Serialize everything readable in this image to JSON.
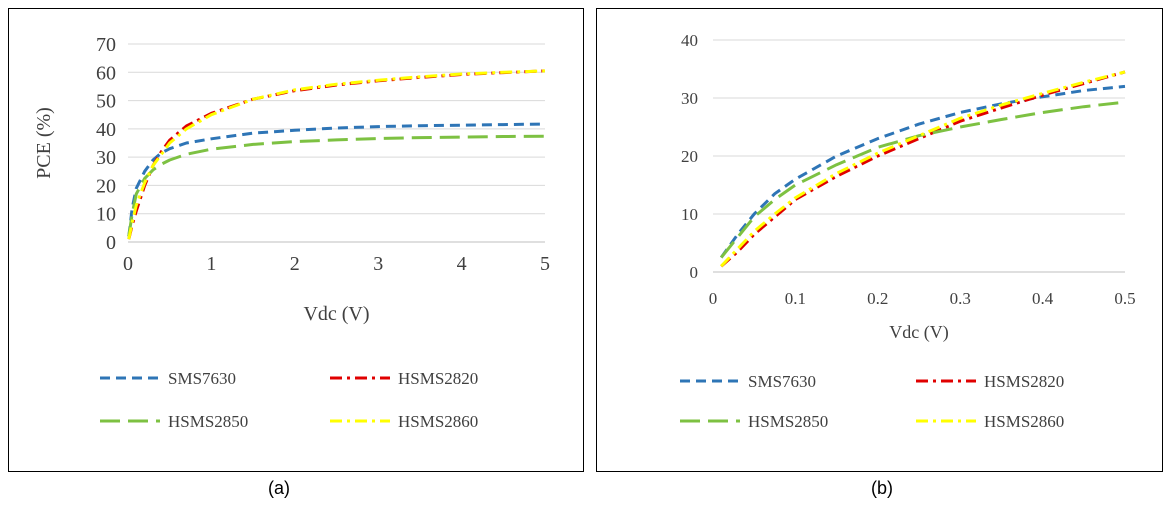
{
  "captions": [
    "(a)",
    "(b)"
  ],
  "chart_data": [
    {
      "type": "line",
      "title": "",
      "xlabel": "Vdc (V)",
      "ylabel": "PCE (%)",
      "xlim": [
        0,
        5
      ],
      "ylim": [
        0,
        70
      ],
      "x_ticks": [
        "0",
        "1",
        "2",
        "3",
        "4",
        "5"
      ],
      "y_ticks": [
        "0",
        "10",
        "20",
        "30",
        "40",
        "50",
        "60",
        "70"
      ],
      "grid": "horizontal",
      "legend_position": "bottom",
      "series": [
        {
          "name": "SMS7630",
          "color": "#2E75B6",
          "dash": "dashed",
          "points": [
            [
              0.01,
              2
            ],
            [
              0.05,
              12
            ],
            [
              0.1,
              19
            ],
            [
              0.2,
              25
            ],
            [
              0.3,
              29
            ],
            [
              0.4,
              31.5
            ],
            [
              0.5,
              33
            ],
            [
              0.7,
              35
            ],
            [
              1,
              36.5
            ],
            [
              1.5,
              38.5
            ],
            [
              2,
              39.5
            ],
            [
              2.5,
              40.3
            ],
            [
              3,
              40.8
            ],
            [
              3.5,
              41.1
            ],
            [
              4,
              41.3
            ],
            [
              4.5,
              41.5
            ],
            [
              5,
              41.7
            ]
          ]
        },
        {
          "name": "HSMS2820",
          "color": "#E00000",
          "dash": "dashdot",
          "points": [
            [
              0.01,
              1
            ],
            [
              0.05,
              6
            ],
            [
              0.1,
              11
            ],
            [
              0.2,
              20
            ],
            [
              0.3,
              27
            ],
            [
              0.4,
              32
            ],
            [
              0.5,
              36
            ],
            [
              0.7,
              41
            ],
            [
              1,
              45.5
            ],
            [
              1.5,
              50.5
            ],
            [
              2,
              53.5
            ],
            [
              2.5,
              55.5
            ],
            [
              3,
              57
            ],
            [
              3.5,
              58.2
            ],
            [
              4,
              59.2
            ],
            [
              4.5,
              59.9
            ],
            [
              5,
              60.5
            ]
          ]
        },
        {
          "name": "HSMS2850",
          "color": "#7DC142",
          "dash": "longdash",
          "points": [
            [
              0.01,
              2
            ],
            [
              0.05,
              10
            ],
            [
              0.1,
              17
            ],
            [
              0.2,
              22.5
            ],
            [
              0.3,
              25.5
            ],
            [
              0.4,
              27.5
            ],
            [
              0.5,
              29
            ],
            [
              0.7,
              31
            ],
            [
              1,
              32.8
            ],
            [
              1.5,
              34.5
            ],
            [
              2,
              35.5
            ],
            [
              2.5,
              36.1
            ],
            [
              3,
              36.6
            ],
            [
              3.5,
              36.9
            ],
            [
              4,
              37.1
            ],
            [
              4.5,
              37.3
            ],
            [
              5,
              37.4
            ]
          ]
        },
        {
          "name": "HSMS2860",
          "color": "#FFFF00",
          "dash": "dashdot",
          "points": [
            [
              0.01,
              1
            ],
            [
              0.05,
              7
            ],
            [
              0.1,
              13
            ],
            [
              0.2,
              21
            ],
            [
              0.3,
              27
            ],
            [
              0.4,
              31
            ],
            [
              0.5,
              35
            ],
            [
              0.7,
              40
            ],
            [
              1,
              45
            ],
            [
              1.5,
              50.5
            ],
            [
              2,
              53.8
            ],
            [
              2.5,
              55.8
            ],
            [
              3,
              57.2
            ],
            [
              3.5,
              58.4
            ],
            [
              4,
              59.4
            ],
            [
              4.5,
              60
            ],
            [
              5,
              60.5
            ]
          ]
        }
      ]
    },
    {
      "type": "line",
      "title": "",
      "xlabel": "Vdc (V)",
      "ylabel": "",
      "xlim": [
        0,
        0.5
      ],
      "ylim": [
        0,
        40
      ],
      "x_ticks": [
        "0",
        "0.1",
        "0.2",
        "0.3",
        "0.4",
        "0.5"
      ],
      "y_ticks": [
        "0",
        "10",
        "20",
        "30",
        "40"
      ],
      "grid": "horizontal",
      "legend_position": "bottom",
      "series": [
        {
          "name": "SMS7630",
          "color": "#2E75B6",
          "dash": "dashed",
          "points": [
            [
              0.01,
              2.5
            ],
            [
              0.03,
              6.5
            ],
            [
              0.05,
              10
            ],
            [
              0.075,
              13.5
            ],
            [
              0.1,
              16
            ],
            [
              0.15,
              20
            ],
            [
              0.2,
              23
            ],
            [
              0.25,
              25.5
            ],
            [
              0.3,
              27.5
            ],
            [
              0.35,
              29
            ],
            [
              0.4,
              30.2
            ],
            [
              0.45,
              31.3
            ],
            [
              0.5,
              32
            ]
          ]
        },
        {
          "name": "HSMS2820",
          "color": "#E00000",
          "dash": "dashdot",
          "points": [
            [
              0.01,
              1
            ],
            [
              0.03,
              3.5
            ],
            [
              0.05,
              6.5
            ],
            [
              0.075,
              9.5
            ],
            [
              0.1,
              12.5
            ],
            [
              0.15,
              16.5
            ],
            [
              0.2,
              20
            ],
            [
              0.25,
              23
            ],
            [
              0.3,
              26
            ],
            [
              0.35,
              28.3
            ],
            [
              0.4,
              30.5
            ],
            [
              0.45,
              32.5
            ],
            [
              0.5,
              34.5
            ]
          ]
        },
        {
          "name": "HSMS2850",
          "color": "#7DC142",
          "dash": "longdash",
          "points": [
            [
              0.01,
              2.5
            ],
            [
              0.03,
              6
            ],
            [
              0.05,
              9.5
            ],
            [
              0.075,
              12.5
            ],
            [
              0.1,
              15
            ],
            [
              0.15,
              18.5
            ],
            [
              0.2,
              21.5
            ],
            [
              0.25,
              23.5
            ],
            [
              0.3,
              25
            ],
            [
              0.35,
              26.3
            ],
            [
              0.4,
              27.5
            ],
            [
              0.45,
              28.5
            ],
            [
              0.5,
              29.3
            ]
          ]
        },
        {
          "name": "HSMS2860",
          "color": "#FFFF00",
          "dash": "dashdot",
          "points": [
            [
              0.01,
              1
            ],
            [
              0.03,
              4
            ],
            [
              0.05,
              7
            ],
            [
              0.075,
              10
            ],
            [
              0.1,
              12.8
            ],
            [
              0.15,
              17
            ],
            [
              0.2,
              20.5
            ],
            [
              0.25,
              23.5
            ],
            [
              0.3,
              26.5
            ],
            [
              0.35,
              28.8
            ],
            [
              0.4,
              30.8
            ],
            [
              0.45,
              32.7
            ],
            [
              0.5,
              34.5
            ]
          ]
        }
      ]
    }
  ]
}
